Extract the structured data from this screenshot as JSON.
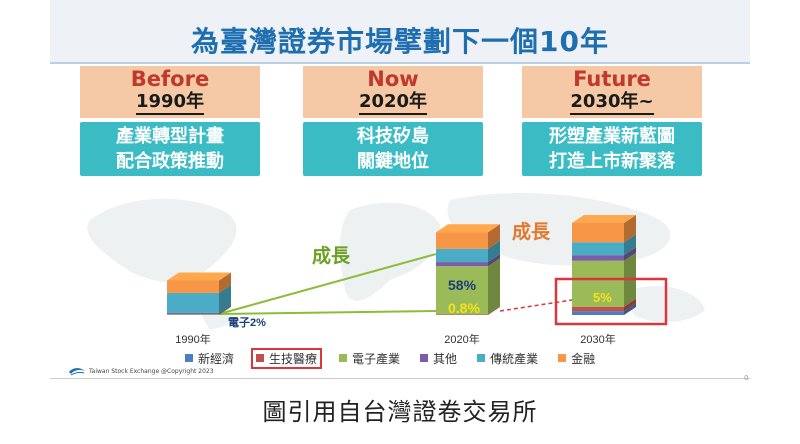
{
  "title": "為臺灣證券市場擘劃下一個10年",
  "eras": [
    {
      "name": "Before",
      "year": "1990年",
      "goal_line1": "產業轉型計畫",
      "goal_line2": "配合政策推動"
    },
    {
      "name": "Now",
      "year": "2020年",
      "goal_line1": "科技矽島",
      "goal_line2": "關鍵地位"
    },
    {
      "name": "Future",
      "year": "2030年~",
      "goal_line1": "形塑產業新藍圖",
      "goal_line2": "打造上市新聚落"
    }
  ],
  "chart_data": {
    "type": "bar",
    "stacked": true,
    "categories": [
      "1990年",
      "2020年",
      "2030年"
    ],
    "series": [
      {
        "name": "新經濟",
        "color": "#4a7fc1",
        "values": [
          0,
          0,
          4
        ]
      },
      {
        "name": "生技醫療",
        "color": "#c0504d",
        "values": [
          0,
          0.8,
          5
        ]
      },
      {
        "name": "電子產業",
        "color": "#9bbb59",
        "values": [
          2,
          58,
          50
        ]
      },
      {
        "name": "其他",
        "color": "#7b5ea7",
        "values": [
          4,
          5,
          6
        ]
      },
      {
        "name": "傳統產業",
        "color": "#4bacc6",
        "values": [
          58,
          16,
          14
        ]
      },
      {
        "name": "金融",
        "color": "#f79646",
        "values": [
          36,
          20,
          21
        ]
      }
    ],
    "bar_heights_relative": [
      0.3,
      0.72,
      0.8
    ],
    "data_labels": [
      {
        "category": "1990年",
        "text": "電子2%"
      },
      {
        "category": "2020年",
        "text": "58%"
      },
      {
        "category": "2020年",
        "text": "0.8%"
      },
      {
        "category": "2030年",
        "text": "5%"
      }
    ],
    "annotations": [
      "成長",
      "成長"
    ],
    "legend_position": "bottom",
    "highlighted_legend_entry": "生技醫療"
  },
  "footer": {
    "copyright": "Taiwan Stock Exchange @Copyright 2023",
    "page_marker": "0"
  },
  "caption": "圖引用自台灣證卷交易所",
  "colors": {
    "title": "#1f6fb0",
    "era_bg": "#f5c9a6",
    "era_name": "#c0392b",
    "goal_bg": "#3bbcc5",
    "growth_text": "#6aa121",
    "highlight": "#d9363e"
  }
}
